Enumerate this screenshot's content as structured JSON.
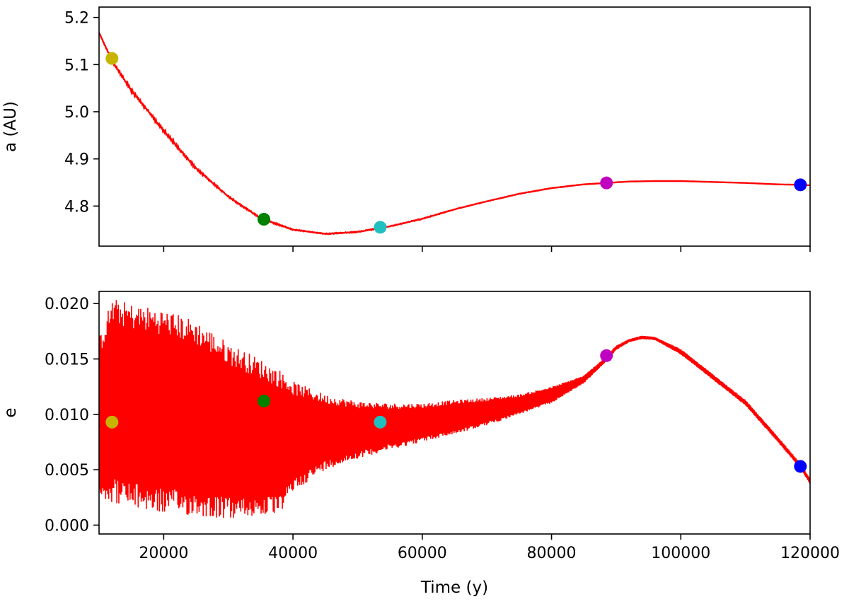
{
  "chart_data": [
    {
      "type": "line",
      "title": "",
      "xlabel": "",
      "ylabel": "a (AU)",
      "xlim": [
        10000,
        120000
      ],
      "ylim": [
        4.715,
        5.222
      ],
      "xticks": [
        20000,
        40000,
        60000,
        80000,
        100000,
        120000
      ],
      "xtick_labels_visible": false,
      "yticks": [
        4.8,
        4.9,
        5.0,
        5.1,
        5.2
      ],
      "ytick_labels": [
        "4.8",
        "4.9",
        "5.0",
        "5.1",
        "5.2"
      ],
      "grid": false,
      "series": [
        {
          "color": "#ff0000",
          "x": [
            10000,
            12000,
            15000,
            20000,
            25000,
            30000,
            35000,
            40000,
            45000,
            50000,
            55000,
            60000,
            65000,
            70000,
            75000,
            80000,
            85000,
            88500,
            92000,
            96000,
            100000,
            105000,
            110000,
            115000,
            118500,
            120000
          ],
          "y": [
            5.168,
            5.108,
            5.045,
            4.96,
            4.88,
            4.82,
            4.774,
            4.75,
            4.741,
            4.745,
            4.757,
            4.773,
            4.793,
            4.81,
            4.826,
            4.838,
            4.846,
            4.849,
            4.852,
            4.853,
            4.853,
            4.851,
            4.849,
            4.846,
            4.845,
            4.844
          ],
          "noise_amplitude": [
            0.0,
            0.003,
            0.004,
            0.004,
            0.003,
            0.002,
            0.002,
            0.001,
            0.001,
            0.001,
            0.001,
            0.001,
            0.0005,
            0.0005,
            0.0005,
            0.0005,
            0.0003,
            0.0003,
            0.0,
            0.0,
            0.0,
            0.0,
            0.0,
            0.0,
            0.0,
            0.0
          ]
        }
      ],
      "markers": [
        {
          "x": 12000,
          "y": 5.113,
          "color": "#c8b400"
        },
        {
          "x": 35500,
          "y": 4.772,
          "color": "#008000"
        },
        {
          "x": 53500,
          "y": 4.755,
          "color": "#20c0c0"
        },
        {
          "x": 88500,
          "y": 4.849,
          "color": "#c000c0"
        },
        {
          "x": 118500,
          "y": 4.845,
          "color": "#0000ff"
        }
      ]
    },
    {
      "type": "line",
      "title": "",
      "xlabel": "Time (y)",
      "ylabel": "e",
      "xlim": [
        10000,
        120000
      ],
      "ylim": [
        -0.0008,
        0.0211
      ],
      "xticks": [
        20000,
        40000,
        60000,
        80000,
        100000,
        120000
      ],
      "xtick_labels": [
        "20000",
        "40000",
        "60000",
        "80000",
        "100000",
        "120000"
      ],
      "yticks": [
        0.0,
        0.005,
        0.01,
        0.015,
        0.02
      ],
      "ytick_labels": [
        "0.000",
        "0.005",
        "0.010",
        "0.015",
        "0.020"
      ],
      "grid": false,
      "series": [
        {
          "color": "#ff0000",
          "x": [
            10000,
            12000,
            15000,
            20000,
            25000,
            30000,
            35000,
            38000,
            40000,
            45000,
            50000,
            55000,
            60000,
            65000,
            70000,
            75000,
            80000,
            85000,
            88000,
            90000,
            92000,
            94000,
            96000,
            100000,
            105000,
            110000,
            115000,
            118500,
            120000
          ],
          "upper": [
            0.017,
            0.0205,
            0.02,
            0.0195,
            0.0185,
            0.0165,
            0.015,
            0.014,
            0.013,
            0.0118,
            0.0112,
            0.011,
            0.011,
            0.0113,
            0.0115,
            0.0118,
            0.0125,
            0.0135,
            0.015,
            0.0162,
            0.0168,
            0.0171,
            0.017,
            0.0159,
            0.0136,
            0.0113,
            0.008,
            0.0056,
            0.0042
          ],
          "lower": [
            0.0025,
            0.002,
            0.0015,
            0.001,
            0.0008,
            0.0005,
            0.0008,
            0.001,
            0.003,
            0.005,
            0.006,
            0.0068,
            0.0075,
            0.0082,
            0.009,
            0.01,
            0.011,
            0.0128,
            0.0145,
            0.0158,
            0.0165,
            0.0168,
            0.0167,
            0.0154,
            0.0131,
            0.0108,
            0.0075,
            0.0051,
            0.0037
          ]
        }
      ],
      "markers": [
        {
          "x": 12000,
          "y": 0.0093,
          "color": "#c8b400"
        },
        {
          "x": 35500,
          "y": 0.0112,
          "color": "#008000"
        },
        {
          "x": 53500,
          "y": 0.0093,
          "color": "#20c0c0"
        },
        {
          "x": 88500,
          "y": 0.0153,
          "color": "#c000c0"
        },
        {
          "x": 118500,
          "y": 0.0053,
          "color": "#0000ff"
        }
      ]
    }
  ]
}
